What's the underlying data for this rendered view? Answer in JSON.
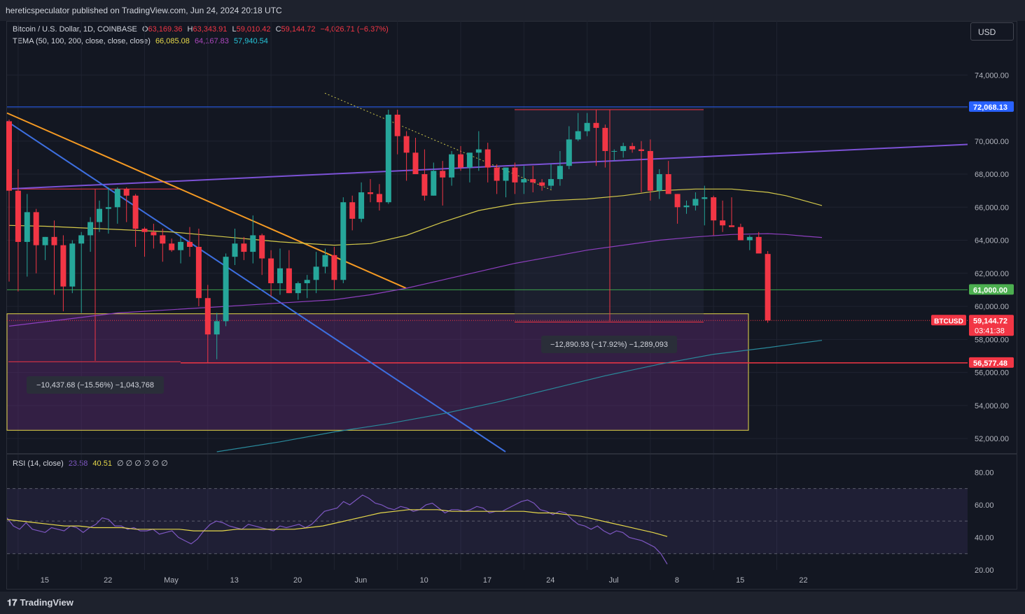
{
  "header": {
    "publisher": "hereticspeculator published on TradingView.com, Jun 24, 2024 20:18 UTC"
  },
  "legend": {
    "symbol": "Bitcoin / U.S. Dollar, 1D, COINBASE",
    "ohlc": [
      {
        "k": "O",
        "v": "63,169.36"
      },
      {
        "k": "H",
        "v": "63,343.91"
      },
      {
        "k": "L",
        "v": "59,010.42"
      },
      {
        "k": "C",
        "v": "59,144.72"
      }
    ],
    "change": "−4,026.71 (−6.37%)",
    "tema_label": "TEMA (50, 100, 200, close, close, close)",
    "tema_values": [
      "66,085.08",
      "64,167.83",
      "57,940.54"
    ],
    "rsi_label": "RSI (14, close)",
    "rsi_values": [
      "23.58",
      "40.51"
    ],
    "rsi_empty": "∅ ∅ ∅ ∅ ∅ ∅"
  },
  "currency_button": "USD",
  "footer": {
    "brand": "TradingView"
  },
  "colors": {
    "up": "#26a69a",
    "down": "#f23645",
    "tema50": "#d4c94a",
    "tema100": "#8e3fbf",
    "tema200": "#2a8a9c",
    "resistance": "#3060e0",
    "trend_orange": "#f59a23",
    "trend_blue": "#3d6fe0",
    "trend_purple": "#7c52d6",
    "support_green": "#3fa34d",
    "support_red": "#f23645",
    "zone_yellow": "#e6d84a"
  },
  "chart_data": {
    "type": "candlestick",
    "symbol": "BTCUSD",
    "timeframe": "1D",
    "x_tick_labels": [
      "15",
      "22",
      "May",
      "13",
      "20",
      "Jun",
      "10",
      "17",
      "24",
      "Jul",
      "8",
      "15",
      "22"
    ],
    "y_tick_labels": [
      "52,000.00",
      "54,000.00",
      "56,000.00",
      "58,000.00",
      "60,000.00",
      "62,000.00",
      "64,000.00",
      "66,000.00",
      "68,000.00",
      "70,000.00",
      "72,000.00",
      "74,000.00"
    ],
    "ylim": [
      51200,
      76000
    ],
    "price_labels": [
      {
        "value": 72068.13,
        "text": "72,068.13",
        "color": "#2962ff"
      },
      {
        "value": 61000,
        "text": "61,000.00",
        "color": "#4caf50"
      },
      {
        "value": 59144.72,
        "text": "59,144.72",
        "sub": "03:41:38",
        "tag": "BTCUSD",
        "color": "#f23645"
      },
      {
        "value": 56577.48,
        "text": "56,577.48",
        "color": "#f23645"
      }
    ],
    "candles": [
      [
        71200,
        71300,
        61500,
        67000
      ],
      [
        67000,
        68300,
        60900,
        63900
      ],
      [
        63900,
        66800,
        61800,
        65700
      ],
      [
        65700,
        65900,
        62000,
        63700
      ],
      [
        63700,
        64200,
        62800,
        64200
      ],
      [
        64200,
        65200,
        60700,
        63700
      ],
      [
        63700,
        64300,
        59700,
        61200
      ],
      [
        61200,
        64000,
        60800,
        63800
      ],
      [
        63800,
        64500,
        59600,
        64300
      ],
      [
        64300,
        65400,
        63300,
        65100
      ],
      [
        65100,
        66400,
        64500,
        65900
      ],
      [
        65900,
        67200,
        64400,
        66000
      ],
      [
        66000,
        67200,
        65000,
        67100
      ],
      [
        67100,
        67200,
        65100,
        66700
      ],
      [
        66700,
        66800,
        63600,
        64700
      ],
      [
        64700,
        64800,
        63000,
        64500
      ],
      [
        64500,
        65000,
        63500,
        64300
      ],
      [
        64300,
        64700,
        62700,
        63800
      ],
      [
        63800,
        64100,
        63300,
        63400
      ],
      [
        63400,
        64200,
        62600,
        63900
      ],
      [
        63900,
        64800,
        63000,
        63600
      ],
      [
        63600,
        64700,
        60000,
        60500
      ],
      [
        60500,
        61300,
        56600,
        58300
      ],
      [
        58300,
        59600,
        56800,
        59100
      ],
      [
        59100,
        63200,
        58800,
        63000
      ],
      [
        63000,
        64700,
        62500,
        63800
      ],
      [
        63800,
        64200,
        62800,
        63300
      ],
      [
        63300,
        65500,
        62600,
        64300
      ],
      [
        64300,
        64400,
        61900,
        62900
      ],
      [
        62900,
        63400,
        60600,
        61400
      ],
      [
        61400,
        63500,
        60700,
        62300
      ],
      [
        62300,
        63400,
        60800,
        60800
      ],
      [
        60800,
        61500,
        60400,
        61400
      ],
      [
        61400,
        61900,
        60500,
        61600
      ],
      [
        61600,
        63300,
        60800,
        62400
      ],
      [
        62400,
        63500,
        62000,
        63100
      ],
      [
        63100,
        63600,
        61000,
        61600
      ],
      [
        61600,
        66600,
        61400,
        66300
      ],
      [
        66300,
        66700,
        64600,
        65300
      ],
      [
        65300,
        67500,
        65100,
        66900
      ],
      [
        66900,
        67700,
        66300,
        66800
      ],
      [
        66800,
        67400,
        65800,
        66300
      ],
      [
        66300,
        71900,
        66200,
        71600
      ],
      [
        71600,
        71900,
        69200,
        70300
      ],
      [
        70300,
        70600,
        67600,
        69300
      ],
      [
        69300,
        70200,
        68200,
        68000
      ],
      [
        68000,
        69500,
        66400,
        66700
      ],
      [
        66700,
        68700,
        66700,
        68200
      ],
      [
        68200,
        68800,
        66100,
        67800
      ],
      [
        67800,
        69400,
        67300,
        69200
      ],
      [
        69200,
        69700,
        68200,
        68400
      ],
      [
        68400,
        69200,
        67500,
        69300
      ],
      [
        69300,
        70600,
        68200,
        69500
      ],
      [
        69500,
        69900,
        67500,
        68400
      ],
      [
        68400,
        68600,
        66800,
        67600
      ],
      [
        67600,
        68400,
        66600,
        68400
      ],
      [
        68400,
        68700,
        66800,
        67500
      ],
      [
        67500,
        68500,
        66800,
        67700
      ],
      [
        67700,
        68500,
        66900,
        67500
      ],
      [
        67500,
        67700,
        67000,
        67300
      ],
      [
        67300,
        68600,
        67100,
        67700
      ],
      [
        67700,
        69400,
        67300,
        68500
      ],
      [
        68500,
        70900,
        68300,
        70100
      ],
      [
        70100,
        71700,
        70000,
        70600
      ],
      [
        70600,
        71700,
        70300,
        71100
      ],
      [
        71100,
        71900,
        68500,
        70800
      ],
      [
        70800,
        71000,
        68400,
        69400
      ],
      [
        69400,
        69500,
        68800,
        69400
      ],
      [
        69400,
        69900,
        69000,
        69700
      ],
      [
        69700,
        69900,
        69300,
        69500
      ],
      [
        69500,
        70000,
        66900,
        69400
      ],
      [
        69400,
        70100,
        66400,
        67000
      ],
      [
        67000,
        68300,
        66500,
        68000
      ],
      [
        68000,
        68800,
        66900,
        66800
      ],
      [
        66800,
        66800,
        65000,
        66000
      ],
      [
        66000,
        66400,
        65600,
        66100
      ],
      [
        66100,
        66900,
        65800,
        66500
      ],
      [
        66500,
        67300,
        64900,
        66600
      ],
      [
        66600,
        66700,
        64300,
        65200
      ],
      [
        65200,
        66400,
        64500,
        64900
      ],
      [
        64900,
        66600,
        64900,
        64800
      ],
      [
        64800,
        65000,
        64000,
        64000
      ],
      [
        64000,
        64300,
        63400,
        64200
      ],
      [
        64200,
        64500,
        63300,
        63200
      ],
      [
        63170,
        63344,
        59010,
        59145
      ]
    ],
    "tema": [
      {
        "name": "TEMA 50",
        "color": "#d4c94a",
        "x": [
          0,
          4,
          10,
          18,
          24,
          30,
          36,
          40,
          44,
          48,
          52,
          56,
          60,
          64,
          68,
          72,
          76,
          80,
          84,
          86,
          88,
          90
        ],
        "y": [
          64900,
          64850,
          64700,
          64500,
          64200,
          63900,
          63700,
          63800,
          64300,
          65100,
          65800,
          66200,
          66400,
          66500,
          66700,
          67000,
          67100,
          67100,
          66900,
          66700,
          66400,
          66100
        ]
      },
      {
        "name": "TEMA 100",
        "color": "#8e3fbf",
        "x": [
          0,
          6,
          12,
          18,
          24,
          30,
          36,
          40,
          44,
          48,
          52,
          56,
          60,
          64,
          68,
          72,
          76,
          80,
          84,
          86,
          88,
          90
        ],
        "y": [
          58800,
          59200,
          59600,
          59800,
          60000,
          60200,
          60400,
          60700,
          61100,
          61600,
          62100,
          62600,
          63000,
          63400,
          63700,
          64000,
          64200,
          64350,
          64400,
          64350,
          64250,
          64167
        ]
      },
      {
        "name": "TEMA 200",
        "color": "#2a8a9c",
        "x": [
          23,
          30,
          36,
          42,
          48,
          54,
          60,
          66,
          72,
          78,
          84,
          88,
          90
        ],
        "y": [
          51200,
          51800,
          52400,
          52900,
          53500,
          54200,
          55000,
          55800,
          56500,
          57100,
          57500,
          57800,
          57940
        ]
      }
    ],
    "rsi": {
      "label": "RSI (14, close)",
      "ylim": [
        20,
        90
      ],
      "y_tick_labels": [
        "20.00",
        "40.00",
        "60.00",
        "80.00"
      ],
      "upper_band": 70,
      "middle": 50,
      "lower_band": 30,
      "values": [
        52,
        47,
        45,
        49,
        45,
        44,
        43,
        46,
        45,
        44,
        47,
        46,
        43,
        46,
        48,
        52,
        51,
        47,
        47,
        45,
        46,
        44,
        44,
        45,
        42,
        43,
        44,
        40,
        38,
        36,
        39,
        44,
        48,
        50,
        49,
        47,
        46,
        45,
        48,
        47,
        46,
        45,
        44,
        47,
        46,
        47,
        48,
        46,
        48,
        52,
        56,
        57,
        58,
        62,
        60,
        63,
        66,
        64,
        61,
        60,
        58,
        57,
        59,
        58,
        56,
        57,
        60,
        61,
        58,
        55,
        57,
        57,
        56,
        57,
        59,
        58,
        55,
        56,
        56,
        58,
        60,
        62,
        63,
        61,
        57,
        56,
        54,
        56,
        55,
        51,
        48,
        47,
        45,
        47,
        44,
        42,
        44,
        43,
        40,
        39,
        38,
        36,
        34,
        30,
        23.58
      ],
      "ma_values": [
        51,
        50,
        49,
        48,
        47,
        47,
        46,
        46,
        46,
        45,
        45,
        45,
        45,
        44,
        44,
        44,
        45,
        45,
        45,
        45,
        45,
        46,
        47,
        49,
        51,
        53,
        55,
        56,
        57,
        57,
        57,
        56,
        56,
        56,
        56,
        56,
        56,
        55,
        55,
        54,
        53,
        51,
        49,
        47,
        45,
        43,
        40.51
      ]
    }
  }
}
